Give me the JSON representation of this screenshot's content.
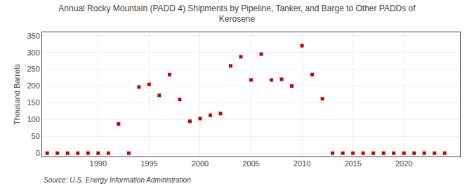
{
  "chart_data": {
    "type": "scatter",
    "title": "Annual Rocky Mountain (PADD 4) Shipments by Pipeline, Tanker, and Barge to Other PADDs of\nKerosene",
    "ylabel": "Thousand Barrels",
    "annotations": [
      "Source: U.S. Energy Information Administration"
    ],
    "x": [
      1985,
      1986,
      1987,
      1988,
      1989,
      1990,
      1991,
      1992,
      1993,
      1994,
      1995,
      1996,
      1997,
      1998,
      1999,
      2000,
      2001,
      2002,
      2003,
      2004,
      2005,
      2006,
      2007,
      2008,
      2009,
      2010,
      2011,
      2012,
      2013,
      2014,
      2015,
      2016,
      2017,
      2018,
      2019,
      2020,
      2021,
      2022,
      2023,
      2024
    ],
    "values": [
      0,
      0,
      0,
      0,
      0,
      0,
      0,
      87,
      0,
      197,
      205,
      172,
      234,
      160,
      95,
      103,
      113,
      118,
      260,
      287,
      218,
      295,
      218,
      220,
      200,
      320,
      234,
      162,
      0,
      0,
      0,
      0,
      0,
      0,
      0,
      0,
      0,
      0,
      0,
      0
    ],
    "color": "#cc0000",
    "marker": "square",
    "xlim": [
      1984.5,
      2025.5
    ],
    "ylim": [
      -10,
      360
    ],
    "xticks": [
      1990,
      1995,
      2000,
      2005,
      2010,
      2015,
      2020
    ],
    "yticks": [
      0,
      50,
      100,
      150,
      200,
      250,
      300,
      350
    ],
    "grid": true
  }
}
